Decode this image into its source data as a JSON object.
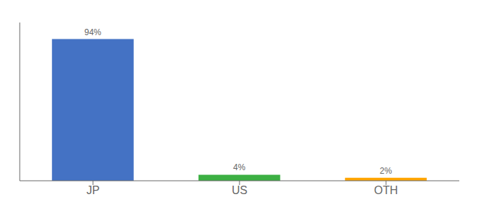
{
  "chart_data": {
    "type": "bar",
    "categories": [
      "JP",
      "US",
      "OTH"
    ],
    "values": [
      94,
      4,
      2
    ],
    "value_labels": [
      "94%",
      "4%",
      "2%"
    ],
    "colors": [
      "#4472C4",
      "#3CB043",
      "#FFA500"
    ],
    "ylim": [
      0,
      105
    ],
    "data_labels": true,
    "tick_labels": "x",
    "grid": false
  }
}
